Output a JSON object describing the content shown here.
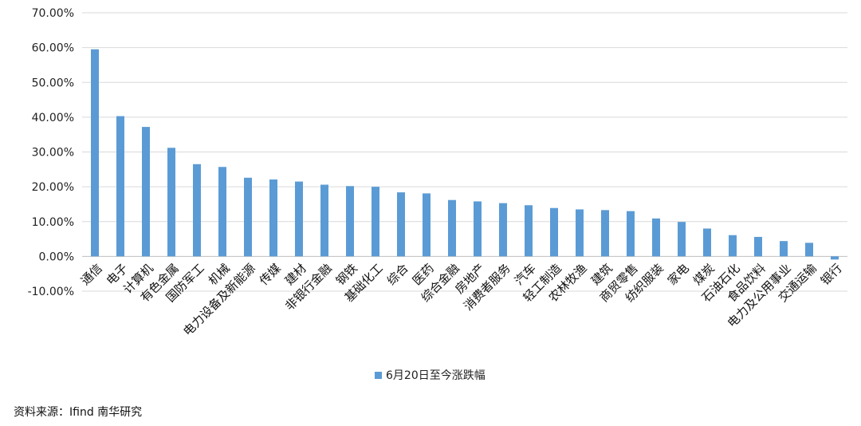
{
  "chart_data": {
    "type": "bar",
    "categories": [
      "通信",
      "电子",
      "计算机",
      "有色金属",
      "国防军工",
      "机械",
      "电力设备及新能源",
      "传媒",
      "建材",
      "非银行金融",
      "钢铁",
      "基础化工",
      "综合",
      "医药",
      "综合金融",
      "房地产",
      "消费者服务",
      "汽车",
      "轻工制造",
      "农林牧渔",
      "建筑",
      "商贸零售",
      "纺织服装",
      "家电",
      "煤炭",
      "石油石化",
      "食品饮料",
      "电力及公用事业",
      "交通运输",
      "银行"
    ],
    "series": [
      {
        "name": "6月20日至今涨跌幅",
        "values": [
          59.5,
          40.3,
          37.2,
          31.2,
          26.5,
          25.7,
          22.6,
          22.1,
          21.5,
          20.6,
          20.2,
          20.0,
          18.4,
          18.1,
          16.2,
          15.8,
          15.3,
          14.7,
          13.9,
          13.5,
          13.3,
          13.0,
          10.9,
          9.9,
          8.0,
          6.1,
          5.6,
          4.4,
          3.9,
          -0.9
        ]
      }
    ],
    "yticks": [
      "-10.00%",
      "0.00%",
      "10.00%",
      "20.00%",
      "30.00%",
      "40.00%",
      "50.00%",
      "60.00%",
      "70.00%"
    ],
    "ylim": [
      -10,
      70
    ],
    "grid": true,
    "legend": "bottom",
    "color": "#5b9bd5"
  },
  "source": "资料来源：Ifind 南华研究"
}
